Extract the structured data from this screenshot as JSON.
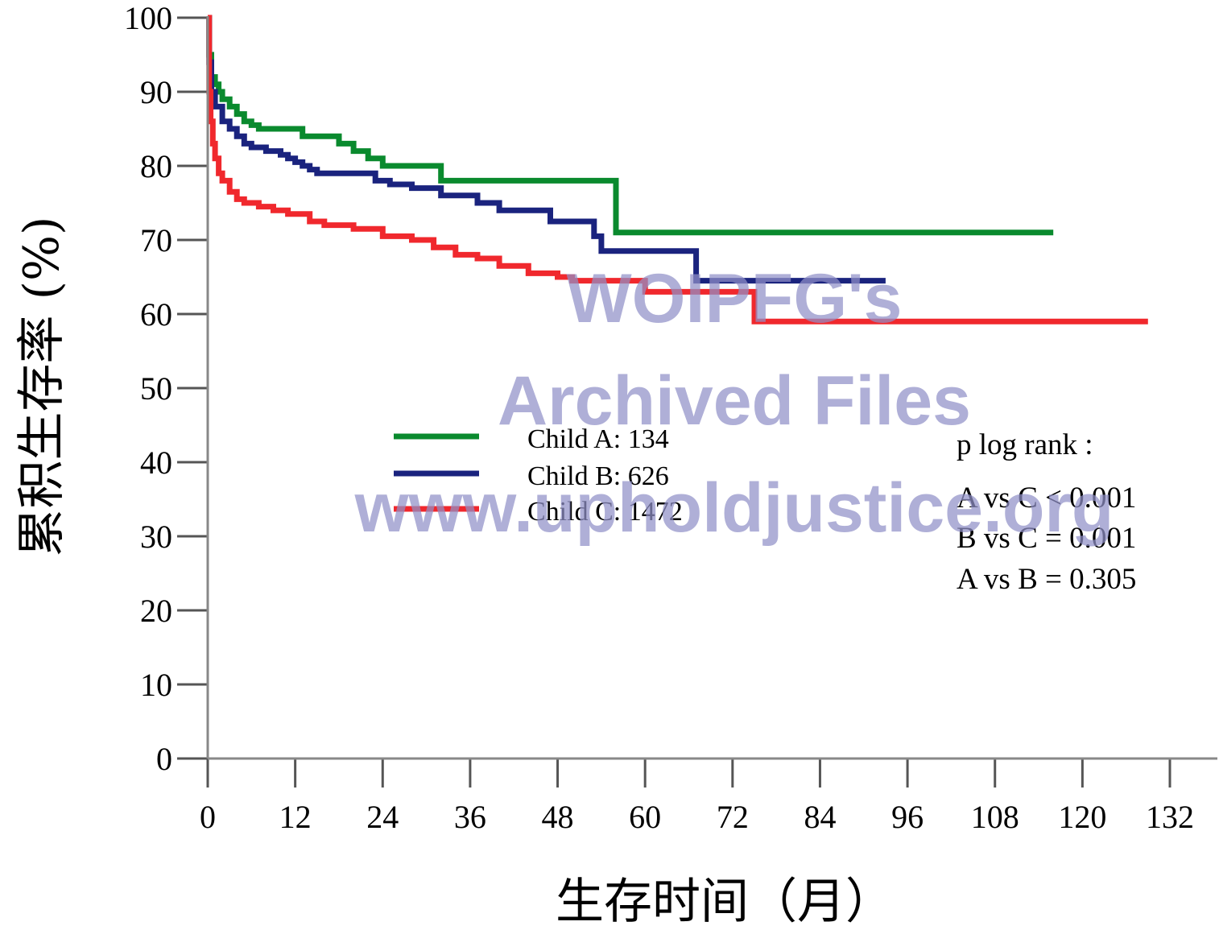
{
  "chart_data": {
    "type": "line",
    "subtype": "kaplan-meier step",
    "xlabel": "生存时间（月）",
    "ylabel": "累积生存率 (%)",
    "xlim": [
      0,
      132
    ],
    "ylim": [
      0,
      100
    ],
    "x_ticks": [
      0,
      12,
      24,
      36,
      48,
      60,
      72,
      84,
      96,
      108,
      120,
      132
    ],
    "y_ticks": [
      0,
      10,
      20,
      30,
      40,
      50,
      60,
      70,
      80,
      90,
      100
    ],
    "grid": false,
    "legend_position": "center-left",
    "series": [
      {
        "name": "Child A: 134",
        "color": "#0a8a2e",
        "points": [
          [
            0,
            100
          ],
          [
            0.2,
            95
          ],
          [
            0.5,
            92
          ],
          [
            1,
            91
          ],
          [
            1.5,
            90
          ],
          [
            2,
            89
          ],
          [
            3,
            88
          ],
          [
            4,
            87
          ],
          [
            5,
            86
          ],
          [
            6,
            85.5
          ],
          [
            7,
            85
          ],
          [
            10,
            85
          ],
          [
            13,
            85
          ],
          [
            13,
            84
          ],
          [
            18,
            84
          ],
          [
            18,
            83
          ],
          [
            20,
            83
          ],
          [
            20,
            82
          ],
          [
            22,
            82
          ],
          [
            22,
            81
          ],
          [
            24,
            81
          ],
          [
            24,
            80
          ],
          [
            32,
            80
          ],
          [
            32,
            78
          ],
          [
            56,
            78
          ],
          [
            56,
            71
          ],
          [
            116,
            71
          ]
        ]
      },
      {
        "name": "Child B: 626",
        "color": "#1a237e",
        "points": [
          [
            0,
            100
          ],
          [
            0.2,
            94
          ],
          [
            0.5,
            90
          ],
          [
            1,
            88
          ],
          [
            2,
            86
          ],
          [
            3,
            85
          ],
          [
            4,
            84
          ],
          [
            5,
            83
          ],
          [
            6,
            82.5
          ],
          [
            8,
            82
          ],
          [
            10,
            81.5
          ],
          [
            11,
            81
          ],
          [
            12,
            80.5
          ],
          [
            13,
            80
          ],
          [
            14,
            79.5
          ],
          [
            15,
            79
          ],
          [
            20,
            79
          ],
          [
            23,
            78
          ],
          [
            25,
            77.5
          ],
          [
            28,
            77
          ],
          [
            32,
            77
          ],
          [
            32,
            76
          ],
          [
            37,
            76
          ],
          [
            37,
            75
          ],
          [
            40,
            75
          ],
          [
            40,
            74
          ],
          [
            47,
            74
          ],
          [
            47,
            72.5
          ],
          [
            53,
            72.5
          ],
          [
            53,
            70.5
          ],
          [
            54,
            70.5
          ],
          [
            54,
            68.5
          ],
          [
            67,
            68.5
          ],
          [
            67,
            64.5
          ],
          [
            93,
            64.5
          ]
        ]
      },
      {
        "name": "Child C: 1472",
        "color": "#f0282d",
        "points": [
          [
            0,
            100
          ],
          [
            0.2,
            90
          ],
          [
            0.4,
            86
          ],
          [
            0.7,
            83
          ],
          [
            1,
            81
          ],
          [
            1.5,
            79
          ],
          [
            2,
            78
          ],
          [
            3,
            76.5
          ],
          [
            4,
            75.5
          ],
          [
            5,
            75
          ],
          [
            7,
            74.5
          ],
          [
            9,
            74
          ],
          [
            11,
            73.5
          ],
          [
            14,
            72.5
          ],
          [
            16,
            72
          ],
          [
            20,
            71.5
          ],
          [
            24,
            70.5
          ],
          [
            28,
            70
          ],
          [
            31,
            69
          ],
          [
            34,
            68
          ],
          [
            37,
            67.5
          ],
          [
            40,
            66.5
          ],
          [
            44,
            65.5
          ],
          [
            48,
            65
          ],
          [
            50,
            64.5
          ],
          [
            54,
            64.5
          ],
          [
            60,
            64.5
          ],
          [
            60,
            63
          ],
          [
            75,
            63
          ],
          [
            75,
            59
          ],
          [
            129,
            59
          ]
        ]
      }
    ],
    "annotations": {
      "title": "p log rank   :",
      "lines": [
        "A vs C < 0.001",
        "B vs C = 0.001",
        "A vs B = 0.305"
      ]
    }
  },
  "watermark": {
    "line1": "WOIPFG's",
    "line2": "Archived Files",
    "line3": "www.upholdjustice.org"
  }
}
